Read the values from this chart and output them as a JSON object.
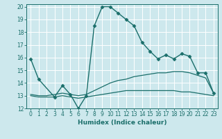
{
  "xlabel": "Humidex (Indice chaleur)",
  "xlim": [
    -0.5,
    23.5
  ],
  "ylim": [
    12,
    20.2
  ],
  "yticks": [
    12,
    13,
    14,
    15,
    16,
    17,
    18,
    19,
    20
  ],
  "xticks": [
    0,
    1,
    2,
    3,
    4,
    5,
    6,
    7,
    8,
    9,
    10,
    11,
    12,
    13,
    14,
    15,
    16,
    17,
    18,
    19,
    20,
    21,
    22,
    23
  ],
  "bg_color": "#cde8ed",
  "grid_color": "#ffffff",
  "line_color": "#1a6e6a",
  "lines": [
    {
      "x": [
        0,
        1,
        3,
        4,
        5,
        6,
        7,
        8,
        9,
        10,
        11,
        12,
        13,
        14,
        15,
        16,
        17,
        18,
        19,
        20,
        21,
        22,
        23
      ],
      "y": [
        15.9,
        14.3,
        12.9,
        13.8,
        13.1,
        12.0,
        13.0,
        18.5,
        20.0,
        20.0,
        19.5,
        19.0,
        18.5,
        17.2,
        16.5,
        15.9,
        16.2,
        15.9,
        16.3,
        16.1,
        14.8,
        14.8,
        13.2
      ],
      "marker": "D",
      "markersize": 2.5,
      "linewidth": 1.0,
      "has_marker": true
    },
    {
      "x": [
        0,
        1,
        2,
        3,
        4,
        5,
        6,
        7,
        8,
        9,
        10,
        11,
        12,
        13,
        14,
        15,
        16,
        17,
        18,
        19,
        20,
        21,
        22,
        23
      ],
      "y": [
        13.1,
        13.0,
        13.0,
        13.1,
        13.2,
        13.1,
        13.0,
        13.1,
        13.4,
        13.7,
        14.0,
        14.2,
        14.3,
        14.5,
        14.6,
        14.7,
        14.8,
        14.8,
        14.9,
        14.9,
        14.8,
        14.6,
        14.4,
        13.2
      ],
      "marker": null,
      "markersize": 0,
      "linewidth": 0.9,
      "has_marker": false
    },
    {
      "x": [
        0,
        1,
        2,
        3,
        4,
        5,
        6,
        7,
        8,
        9,
        10,
        11,
        12,
        13,
        14,
        15,
        16,
        17,
        18,
        19,
        20,
        21,
        22,
        23
      ],
      "y": [
        13.0,
        12.9,
        12.9,
        12.9,
        13.0,
        12.9,
        12.8,
        12.9,
        13.0,
        13.1,
        13.2,
        13.3,
        13.4,
        13.4,
        13.4,
        13.4,
        13.4,
        13.4,
        13.4,
        13.3,
        13.3,
        13.2,
        13.1,
        13.0
      ],
      "marker": null,
      "markersize": 0,
      "linewidth": 0.9,
      "has_marker": false
    }
  ]
}
